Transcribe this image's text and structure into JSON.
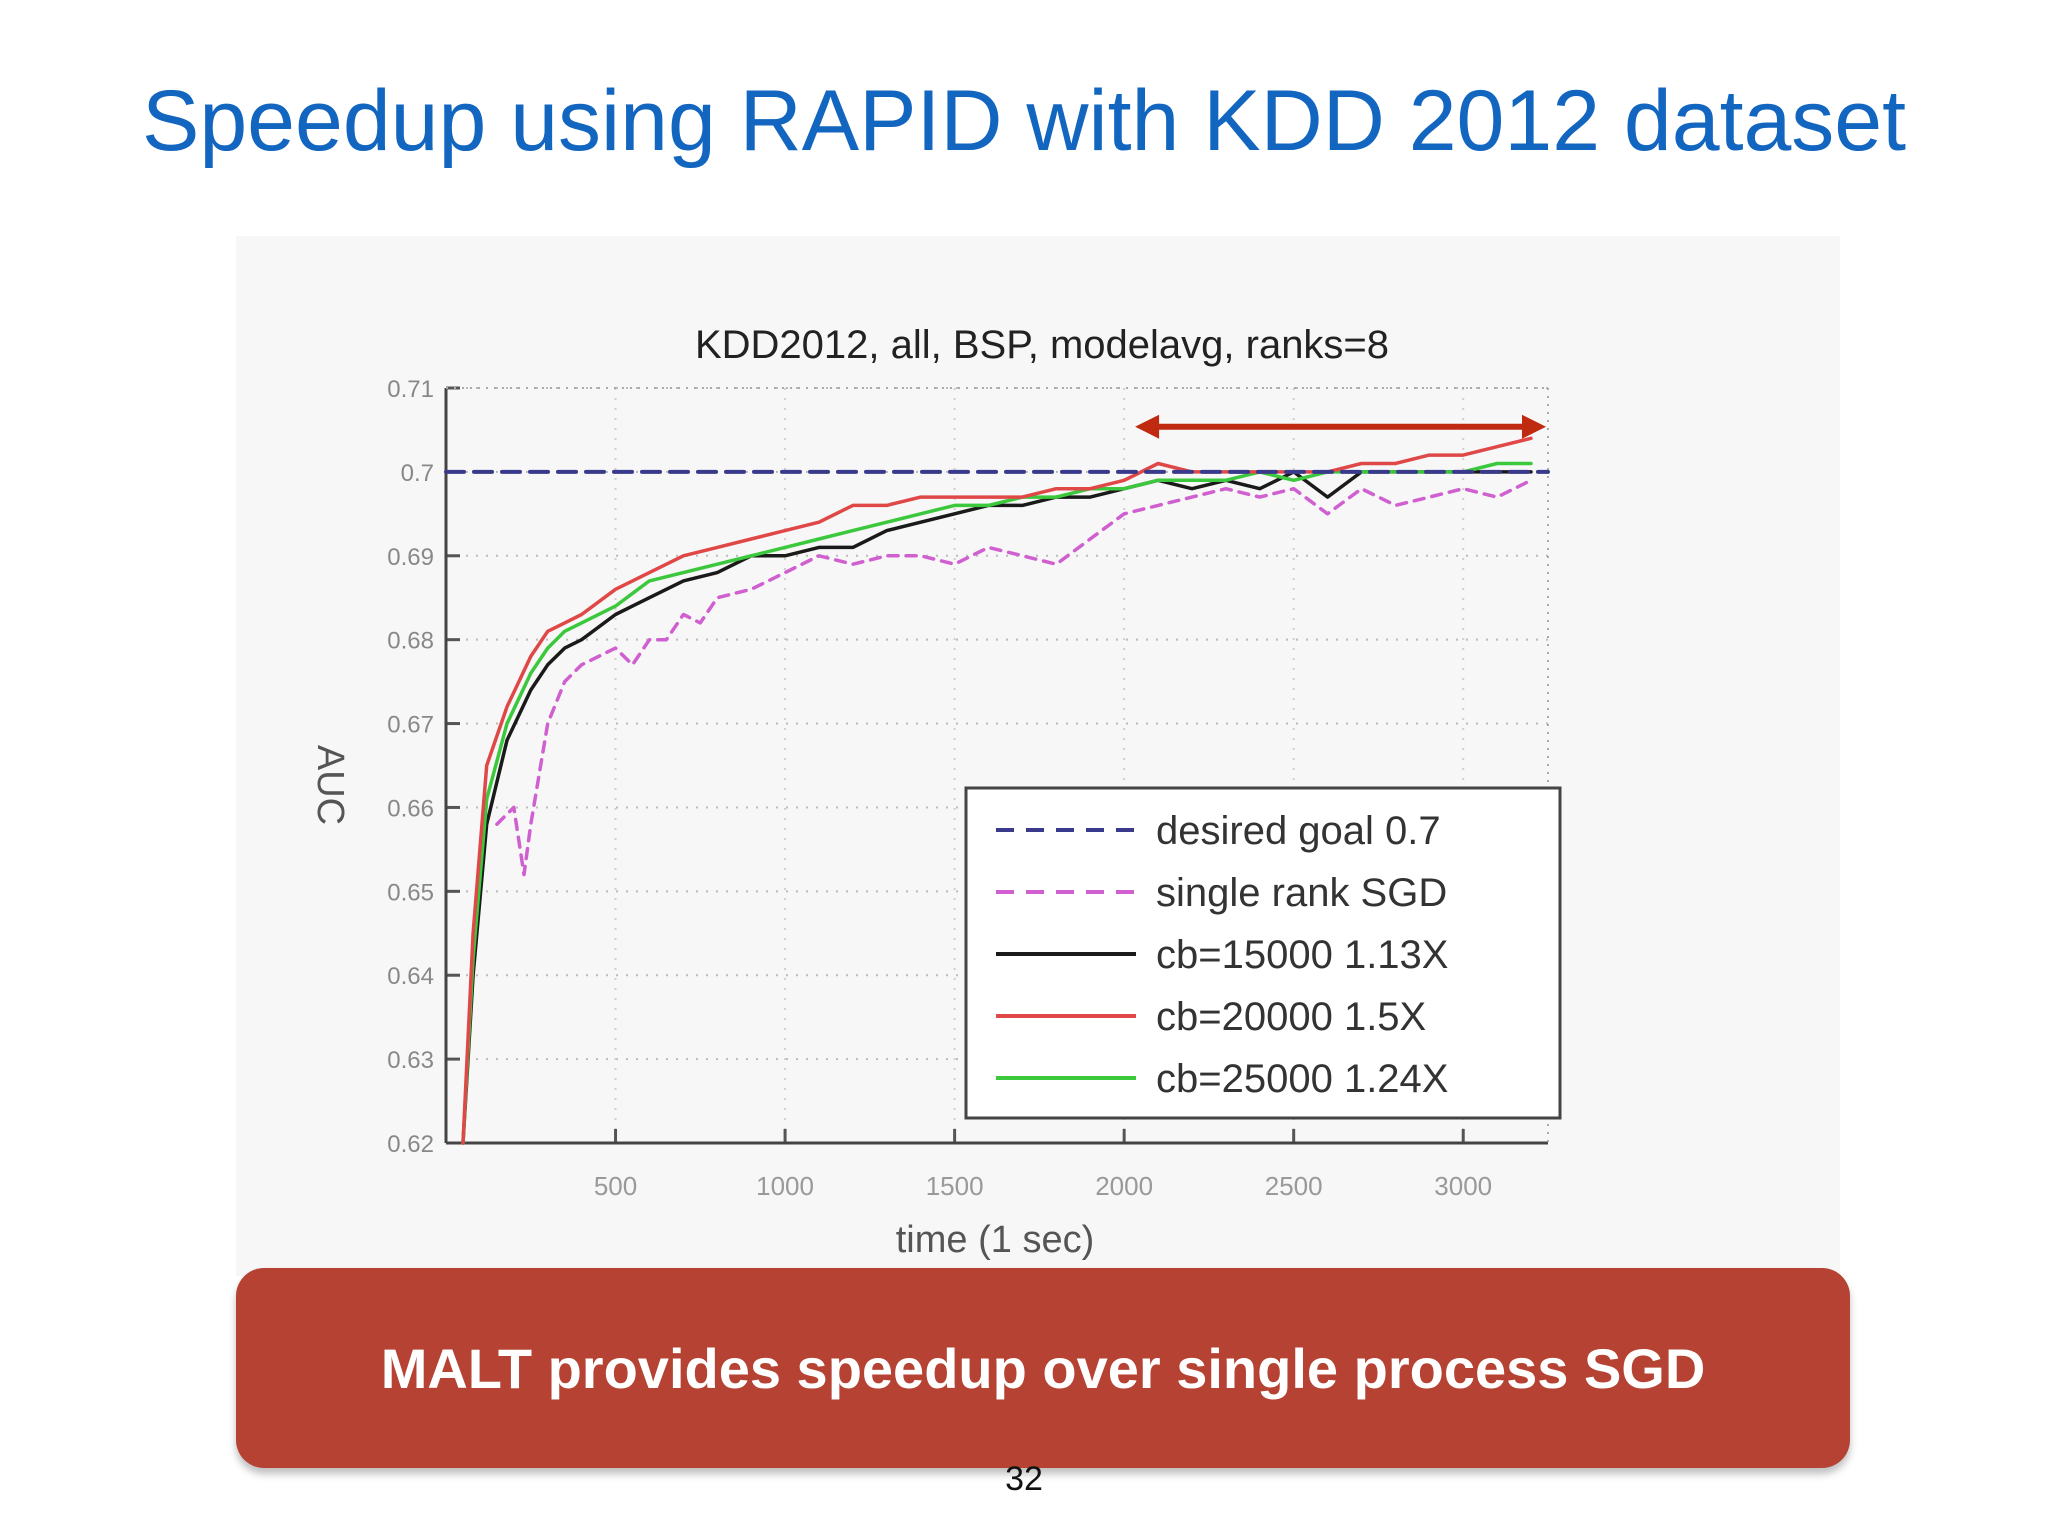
{
  "slide": {
    "title": "Speedup using RAPID with KDD 2012 dataset",
    "callout": "MALT provides speedup over single process SGD",
    "page_number": "32",
    "colors": {
      "title": "#1266c0",
      "callout_bg": "#b54232",
      "arrow": "#c02a10"
    }
  },
  "chart_data": {
    "type": "line",
    "title": "KDD2012, all, BSP, modelavg, ranks=8",
    "xlabel": "time (1 sec)",
    "ylabel": "AUC",
    "xlim": [
      0,
      3250
    ],
    "ylim": [
      0.62,
      0.71
    ],
    "xticks": [
      500,
      1000,
      1500,
      2000,
      2500,
      3000
    ],
    "yticks": [
      0.62,
      0.63,
      0.64,
      0.65,
      0.66,
      0.67,
      0.68,
      0.69,
      0.7,
      0.71
    ],
    "ytick_labels": [
      "0.62",
      "0.63",
      "0.64",
      "0.65",
      "0.66",
      "0.67",
      "0.68",
      "0.69",
      "0.7",
      "0.71"
    ],
    "grid": true,
    "legend_position": "lower-right",
    "annotation": {
      "type": "double-arrow",
      "y": 0.703,
      "x": [
        2050,
        3250
      ],
      "color": "#c02a10"
    },
    "series": [
      {
        "name": "desired goal 0.7",
        "color": "#3a3a8c",
        "style": "dashed",
        "points": [
          [
            0,
            0.7
          ],
          [
            3250,
            0.7
          ]
        ]
      },
      {
        "name": "single rank SGD",
        "color": "#d060d0",
        "style": "dashed",
        "points": [
          [
            150,
            0.658
          ],
          [
            200,
            0.66
          ],
          [
            230,
            0.652
          ],
          [
            250,
            0.658
          ],
          [
            300,
            0.67
          ],
          [
            350,
            0.675
          ],
          [
            400,
            0.677
          ],
          [
            450,
            0.678
          ],
          [
            500,
            0.679
          ],
          [
            550,
            0.677
          ],
          [
            600,
            0.68
          ],
          [
            650,
            0.68
          ],
          [
            700,
            0.683
          ],
          [
            750,
            0.682
          ],
          [
            800,
            0.685
          ],
          [
            900,
            0.686
          ],
          [
            1000,
            0.688
          ],
          [
            1100,
            0.69
          ],
          [
            1200,
            0.689
          ],
          [
            1300,
            0.69
          ],
          [
            1400,
            0.69
          ],
          [
            1500,
            0.689
          ],
          [
            1600,
            0.691
          ],
          [
            1700,
            0.69
          ],
          [
            1800,
            0.689
          ],
          [
            1900,
            0.692
          ],
          [
            2000,
            0.695
          ],
          [
            2100,
            0.696
          ],
          [
            2200,
            0.697
          ],
          [
            2300,
            0.698
          ],
          [
            2400,
            0.697
          ],
          [
            2500,
            0.698
          ],
          [
            2600,
            0.695
          ],
          [
            2700,
            0.698
          ],
          [
            2800,
            0.696
          ],
          [
            2900,
            0.697
          ],
          [
            3000,
            0.698
          ],
          [
            3100,
            0.697
          ],
          [
            3200,
            0.699
          ]
        ]
      },
      {
        "name": "cb=15000 1.13X",
        "color": "#1a1a1a",
        "style": "solid",
        "points": [
          [
            50,
            0.62
          ],
          [
            80,
            0.64
          ],
          [
            120,
            0.658
          ],
          [
            180,
            0.668
          ],
          [
            250,
            0.674
          ],
          [
            300,
            0.677
          ],
          [
            350,
            0.679
          ],
          [
            400,
            0.68
          ],
          [
            500,
            0.683
          ],
          [
            600,
            0.685
          ],
          [
            700,
            0.687
          ],
          [
            800,
            0.688
          ],
          [
            900,
            0.69
          ],
          [
            1000,
            0.69
          ],
          [
            1100,
            0.691
          ],
          [
            1200,
            0.691
          ],
          [
            1300,
            0.693
          ],
          [
            1400,
            0.694
          ],
          [
            1500,
            0.695
          ],
          [
            1600,
            0.696
          ],
          [
            1700,
            0.696
          ],
          [
            1800,
            0.697
          ],
          [
            1900,
            0.697
          ],
          [
            2000,
            0.698
          ],
          [
            2100,
            0.699
          ],
          [
            2200,
            0.698
          ],
          [
            2300,
            0.699
          ],
          [
            2400,
            0.698
          ],
          [
            2500,
            0.7
          ],
          [
            2600,
            0.697
          ],
          [
            2700,
            0.7
          ],
          [
            2800,
            0.7
          ],
          [
            2900,
            0.7
          ],
          [
            3000,
            0.7
          ],
          [
            3100,
            0.7
          ],
          [
            3200,
            0.7
          ]
        ]
      },
      {
        "name": "cb=20000 1.5X",
        "color": "#e04848",
        "style": "solid",
        "points": [
          [
            50,
            0.62
          ],
          [
            80,
            0.645
          ],
          [
            120,
            0.665
          ],
          [
            180,
            0.672
          ],
          [
            250,
            0.678
          ],
          [
            300,
            0.681
          ],
          [
            350,
            0.682
          ],
          [
            400,
            0.683
          ],
          [
            500,
            0.686
          ],
          [
            600,
            0.688
          ],
          [
            700,
            0.69
          ],
          [
            800,
            0.691
          ],
          [
            900,
            0.692
          ],
          [
            1000,
            0.693
          ],
          [
            1100,
            0.694
          ],
          [
            1200,
            0.696
          ],
          [
            1300,
            0.696
          ],
          [
            1400,
            0.697
          ],
          [
            1500,
            0.697
          ],
          [
            1600,
            0.697
          ],
          [
            1700,
            0.697
          ],
          [
            1800,
            0.698
          ],
          [
            1900,
            0.698
          ],
          [
            2000,
            0.699
          ],
          [
            2100,
            0.701
          ],
          [
            2200,
            0.7
          ],
          [
            2300,
            0.7
          ],
          [
            2400,
            0.7
          ],
          [
            2500,
            0.7
          ],
          [
            2600,
            0.7
          ],
          [
            2700,
            0.701
          ],
          [
            2800,
            0.701
          ],
          [
            2900,
            0.702
          ],
          [
            3000,
            0.702
          ],
          [
            3100,
            0.703
          ],
          [
            3200,
            0.704
          ]
        ]
      },
      {
        "name": "cb=25000 1.24X",
        "color": "#3cc83c",
        "style": "solid",
        "points": [
          [
            50,
            0.62
          ],
          [
            80,
            0.642
          ],
          [
            120,
            0.661
          ],
          [
            180,
            0.67
          ],
          [
            250,
            0.676
          ],
          [
            300,
            0.679
          ],
          [
            350,
            0.681
          ],
          [
            400,
            0.682
          ],
          [
            500,
            0.684
          ],
          [
            600,
            0.687
          ],
          [
            700,
            0.688
          ],
          [
            800,
            0.689
          ],
          [
            900,
            0.69
          ],
          [
            1000,
            0.691
          ],
          [
            1100,
            0.692
          ],
          [
            1200,
            0.693
          ],
          [
            1300,
            0.694
          ],
          [
            1400,
            0.695
          ],
          [
            1500,
            0.696
          ],
          [
            1600,
            0.696
          ],
          [
            1700,
            0.697
          ],
          [
            1800,
            0.697
          ],
          [
            1900,
            0.698
          ],
          [
            2000,
            0.698
          ],
          [
            2100,
            0.699
          ],
          [
            2200,
            0.699
          ],
          [
            2300,
            0.699
          ],
          [
            2400,
            0.7
          ],
          [
            2500,
            0.699
          ],
          [
            2600,
            0.7
          ],
          [
            2700,
            0.7
          ],
          [
            2800,
            0.7
          ],
          [
            2900,
            0.7
          ],
          [
            3000,
            0.7
          ],
          [
            3100,
            0.701
          ],
          [
            3200,
            0.701
          ]
        ]
      }
    ]
  }
}
